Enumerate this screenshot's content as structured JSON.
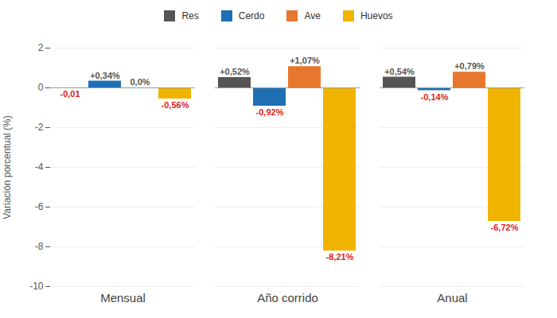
{
  "chart_data": {
    "type": "bar",
    "y_label": "Variación porcentual (%)",
    "categories": [
      "Mensual",
      "Año corrido",
      "Anual"
    ],
    "series": [
      {
        "name": "Res",
        "color": "#555555",
        "values": [
          -0.01,
          0.52,
          0.54
        ],
        "value_labels": [
          "-0,01",
          "+0,52%",
          "+0,54%"
        ]
      },
      {
        "name": "Cerdo",
        "color": "#1f6fb5",
        "values": [
          0.34,
          -0.92,
          -0.14
        ],
        "value_labels": [
          "+0,34%",
          "-0,92%",
          "-0,14%"
        ]
      },
      {
        "name": "Ave",
        "color": "#e8772e",
        "values": [
          0.0,
          1.07,
          0.79
        ],
        "value_labels": [
          "0,0%",
          "+1,07%",
          "+0,79%"
        ]
      },
      {
        "name": "Huevos",
        "color": "#f0b400",
        "values": [
          -0.56,
          -8.21,
          -6.72
        ],
        "value_labels": [
          "-0,56%",
          "-8,21%",
          "-6,72%"
        ]
      }
    ],
    "ylim": [
      -10,
      2
    ],
    "yticks": [
      -10,
      -8,
      -6,
      -4,
      -2,
      0,
      2
    ],
    "grid": true,
    "legend": "top",
    "data_labels": true
  }
}
